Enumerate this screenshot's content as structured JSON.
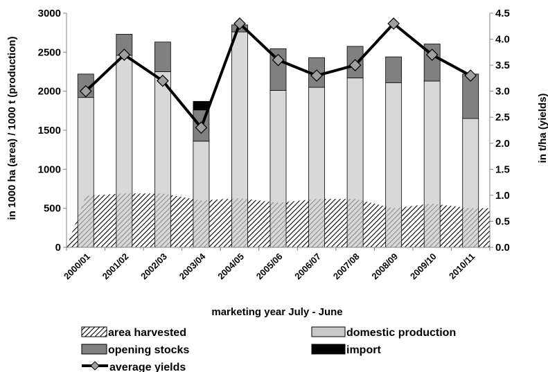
{
  "chart_data": {
    "type": "bar",
    "categories": [
      "2000/01",
      "2001/02",
      "2002/03",
      "2003/04",
      "2004/05",
      "2005/06",
      "2006/07",
      "2007/08",
      "2008/09",
      "2009/10",
      "2010/11"
    ],
    "xlabel": "marketing year July - June",
    "ylabel": "in 1000 ha (area) / 1000 t (production)",
    "y2label": "in t/ha (yields)",
    "ylim": [
      0,
      3000
    ],
    "y2lim": [
      0,
      4.5
    ],
    "yticks": [
      "0",
      "500",
      "1000",
      "1500",
      "2000",
      "2500",
      "3000"
    ],
    "y2ticks": [
      "0.0",
      "0.5",
      "1.0",
      "1.5",
      "2.0",
      "2.5",
      "3.0",
      "3.5",
      "4.0",
      "4.5"
    ],
    "grid": false,
    "legend_position": "bottom",
    "series": [
      {
        "name": "area harvested",
        "kind": "area",
        "axis": "left",
        "color": "#000000",
        "values": [
          660,
          690,
          690,
          600,
          630,
          570,
          620,
          620,
          500,
          560,
          500
        ]
      },
      {
        "name": "domestic production",
        "kind": "bar-stacked",
        "axis": "left",
        "color": "#c8c8c8",
        "values": [
          1920,
          2460,
          2250,
          1360,
          2760,
          2010,
          2050,
          2170,
          2110,
          2130,
          1650
        ]
      },
      {
        "name": "opening stocks",
        "kind": "bar-stacked",
        "axis": "left",
        "color": "#808080",
        "values": [
          300,
          270,
          380,
          400,
          90,
          535,
          380,
          405,
          330,
          475,
          570
        ]
      },
      {
        "name": "import",
        "kind": "bar-stacked",
        "axis": "left",
        "color": "#000000",
        "values": [
          0,
          0,
          0,
          110,
          0,
          0,
          0,
          0,
          0,
          0,
          0
        ]
      },
      {
        "name": "average yields",
        "kind": "line",
        "axis": "right",
        "color": "#000000",
        "marker_color": "#a0a0a0",
        "values": [
          3.0,
          3.7,
          3.2,
          2.3,
          4.3,
          3.6,
          3.3,
          3.5,
          4.3,
          3.7,
          3.3
        ]
      }
    ]
  }
}
